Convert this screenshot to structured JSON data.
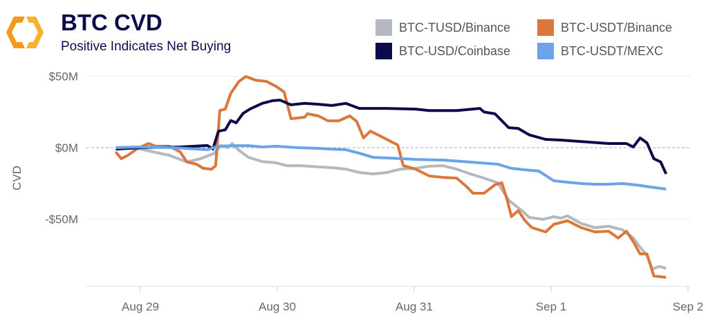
{
  "header": {
    "title": "BTC CVD",
    "subtitle": "Positive Indicates Net Buying"
  },
  "chart_data": {
    "type": "line",
    "title": "BTC CVD",
    "subtitle": "Positive Indicates Net Buying",
    "xlabel": "",
    "ylabel": "CVD",
    "x_unit": "days since Aug 29 00:00",
    "xlim": [
      -0.4,
      4.1
    ],
    "ylim": [
      -97,
      57
    ],
    "x_ticks": [
      {
        "v": 0,
        "label": "Aug 29"
      },
      {
        "v": 1,
        "label": "Aug 30"
      },
      {
        "v": 2,
        "label": "Aug 31"
      },
      {
        "v": 3,
        "label": "Sep 1"
      },
      {
        "v": 4,
        "label": "Sep 2"
      }
    ],
    "y_ticks": [
      {
        "v": 50,
        "label": "$50M"
      },
      {
        "v": 0,
        "label": "$0M"
      },
      {
        "v": -50,
        "label": "-$50M"
      }
    ],
    "legend_position": "top-right",
    "series": [
      {
        "name": "BTC-TUSD/Binance",
        "color": "#b4b8bf",
        "points": [
          [
            -0.18,
            -0.5
          ],
          [
            -0.02,
            -0.5
          ],
          [
            0.09,
            -2.9
          ],
          [
            0.21,
            -5.3
          ],
          [
            0.34,
            -10
          ],
          [
            0.44,
            -7.7
          ],
          [
            0.54,
            -3.9
          ],
          [
            0.59,
            1.4
          ],
          [
            0.64,
            0
          ],
          [
            0.67,
            2.9
          ],
          [
            0.72,
            -1.9
          ],
          [
            0.79,
            -6.8
          ],
          [
            0.89,
            -9.7
          ],
          [
            0.99,
            -10.6
          ],
          [
            1.07,
            -12.6
          ],
          [
            1.17,
            -12.6
          ],
          [
            1.3,
            -13.5
          ],
          [
            1.4,
            -14
          ],
          [
            1.5,
            -15
          ],
          [
            1.6,
            -17.4
          ],
          [
            1.7,
            -18.4
          ],
          [
            1.8,
            -17.4
          ],
          [
            1.9,
            -15
          ],
          [
            2.01,
            -14.5
          ],
          [
            2.11,
            -13
          ],
          [
            2.21,
            -12.6
          ],
          [
            2.31,
            -15
          ],
          [
            2.41,
            -18.4
          ],
          [
            2.51,
            -21.3
          ],
          [
            2.61,
            -24.6
          ],
          [
            2.69,
            -36.7
          ],
          [
            2.74,
            -40.6
          ],
          [
            2.79,
            -44.4
          ],
          [
            2.84,
            -48.8
          ],
          [
            2.94,
            -50.2
          ],
          [
            3.02,
            -48.3
          ],
          [
            3.07,
            -49.3
          ],
          [
            3.12,
            -47.8
          ],
          [
            3.22,
            -53.1
          ],
          [
            3.32,
            -56
          ],
          [
            3.42,
            -55
          ],
          [
            3.52,
            -57.5
          ],
          [
            3.6,
            -63.3
          ],
          [
            3.65,
            -69.6
          ],
          [
            3.7,
            -75.4
          ],
          [
            3.74,
            -85
          ],
          [
            3.79,
            -83.1
          ],
          [
            3.84,
            -84.5
          ]
        ]
      },
      {
        "name": "BTC-USDT/Binance",
        "color": "#d9783a",
        "points": [
          [
            -0.18,
            -3
          ],
          [
            -0.14,
            -7.7
          ],
          [
            -0.09,
            -5.3
          ],
          [
            -0.02,
            -0.5
          ],
          [
            0.06,
            2.9
          ],
          [
            0.11,
            1
          ],
          [
            0.21,
            1
          ],
          [
            0.29,
            -2.9
          ],
          [
            0.34,
            -10
          ],
          [
            0.41,
            -11.6
          ],
          [
            0.46,
            -14.5
          ],
          [
            0.52,
            -15
          ],
          [
            0.55,
            -12.6
          ],
          [
            0.58,
            26
          ],
          [
            0.62,
            27
          ],
          [
            0.66,
            38
          ],
          [
            0.72,
            46.4
          ],
          [
            0.77,
            49.8
          ],
          [
            0.84,
            47.3
          ],
          [
            0.92,
            46.4
          ],
          [
            0.99,
            43
          ],
          [
            1.05,
            39
          ],
          [
            1.1,
            20.3
          ],
          [
            1.2,
            21.3
          ],
          [
            1.22,
            23.7
          ],
          [
            1.3,
            22.2
          ],
          [
            1.37,
            18.8
          ],
          [
            1.45,
            18.8
          ],
          [
            1.53,
            22.2
          ],
          [
            1.58,
            18.4
          ],
          [
            1.63,
            6.8
          ],
          [
            1.68,
            11.6
          ],
          [
            1.78,
            6.8
          ],
          [
            1.83,
            4.3
          ],
          [
            1.88,
            1.9
          ],
          [
            1.92,
            -12.6
          ],
          [
            2.01,
            -15
          ],
          [
            2.11,
            -19.8
          ],
          [
            2.21,
            -20.8
          ],
          [
            2.31,
            -21.3
          ],
          [
            2.38,
            -27
          ],
          [
            2.43,
            -31.9
          ],
          [
            2.51,
            -31.9
          ],
          [
            2.59,
            -26
          ],
          [
            2.64,
            -24.6
          ],
          [
            2.68,
            -36.7
          ],
          [
            2.71,
            -48.3
          ],
          [
            2.76,
            -44
          ],
          [
            2.81,
            -51.2
          ],
          [
            2.86,
            -56
          ],
          [
            2.96,
            -59
          ],
          [
            3.02,
            -53.6
          ],
          [
            3.12,
            -51.2
          ],
          [
            3.22,
            -56
          ],
          [
            3.32,
            -59
          ],
          [
            3.42,
            -58.5
          ],
          [
            3.49,
            -63.3
          ],
          [
            3.55,
            -58.5
          ],
          [
            3.6,
            -65.7
          ],
          [
            3.65,
            -74.4
          ],
          [
            3.7,
            -74.4
          ],
          [
            3.75,
            -89.8
          ],
          [
            3.84,
            -90.8
          ]
        ]
      },
      {
        "name": "BTC-USD/Coinbase",
        "color": "#0b0a4a",
        "points": [
          [
            -0.18,
            -1
          ],
          [
            0,
            0
          ],
          [
            0.29,
            0.5
          ],
          [
            0.49,
            1.5
          ],
          [
            0.53,
            -1
          ],
          [
            0.57,
            11.5
          ],
          [
            0.62,
            12.5
          ],
          [
            0.66,
            19
          ],
          [
            0.7,
            17.4
          ],
          [
            0.75,
            24
          ],
          [
            0.8,
            27
          ],
          [
            0.89,
            31
          ],
          [
            0.97,
            33
          ],
          [
            1.02,
            33.3
          ],
          [
            1.1,
            30
          ],
          [
            1.2,
            31
          ],
          [
            1.3,
            30.4
          ],
          [
            1.4,
            29.5
          ],
          [
            1.5,
            31
          ],
          [
            1.6,
            27.5
          ],
          [
            1.8,
            27.5
          ],
          [
            2.01,
            27
          ],
          [
            2.11,
            26
          ],
          [
            2.31,
            26
          ],
          [
            2.48,
            27.5
          ],
          [
            2.51,
            25
          ],
          [
            2.59,
            23.7
          ],
          [
            2.69,
            14
          ],
          [
            2.76,
            13.5
          ],
          [
            2.84,
            9
          ],
          [
            2.96,
            5.8
          ],
          [
            3.07,
            5.3
          ],
          [
            3.22,
            4.3
          ],
          [
            3.42,
            2.9
          ],
          [
            3.55,
            2.9
          ],
          [
            3.6,
            0.5
          ],
          [
            3.65,
            6.8
          ],
          [
            3.7,
            3.4
          ],
          [
            3.75,
            -7.7
          ],
          [
            3.8,
            -10
          ],
          [
            3.84,
            -18.4
          ]
        ]
      },
      {
        "name": "BTC-USDT/MEXC",
        "color": "#6aa3e8",
        "points": [
          [
            -0.18,
            0
          ],
          [
            -0.02,
            0.5
          ],
          [
            0.24,
            0
          ],
          [
            0.49,
            -1.4
          ],
          [
            0.57,
            1
          ],
          [
            0.69,
            1.4
          ],
          [
            0.79,
            1.4
          ],
          [
            0.89,
            0.5
          ],
          [
            0.99,
            1
          ],
          [
            1.15,
            0
          ],
          [
            1.3,
            -0.5
          ],
          [
            1.4,
            -1
          ],
          [
            1.5,
            -1.4
          ],
          [
            1.6,
            -3.9
          ],
          [
            1.7,
            -6.8
          ],
          [
            1.8,
            -7.2
          ],
          [
            1.9,
            -7.7
          ],
          [
            2.01,
            -8.2
          ],
          [
            2.21,
            -8.7
          ],
          [
            2.41,
            -10.1
          ],
          [
            2.61,
            -11.6
          ],
          [
            2.71,
            -14.5
          ],
          [
            2.81,
            -15.5
          ],
          [
            2.91,
            -16.4
          ],
          [
            3.02,
            -23.2
          ],
          [
            3.12,
            -24.2
          ],
          [
            3.22,
            -25.1
          ],
          [
            3.32,
            -25.6
          ],
          [
            3.42,
            -25.6
          ],
          [
            3.52,
            -25.1
          ],
          [
            3.62,
            -26.1
          ],
          [
            3.72,
            -27.5
          ],
          [
            3.84,
            -29
          ]
        ]
      }
    ]
  }
}
